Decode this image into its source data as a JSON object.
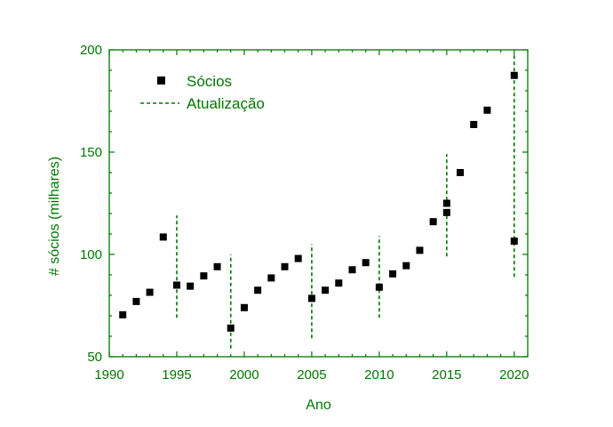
{
  "chart_data": {
    "type": "scatter",
    "title": "",
    "xlabel": "Ano",
    "ylabel": "# sócios (milhares)",
    "xlim": [
      1990,
      2021
    ],
    "ylim": [
      50,
      200
    ],
    "x_ticks": [
      1990,
      1995,
      2000,
      2005,
      2010,
      2015,
      2020
    ],
    "y_ticks": [
      50,
      100,
      150,
      200
    ],
    "x_tick_labels": [
      "1990",
      "1995",
      "2000",
      "2005",
      "2010",
      "2015",
      "2020"
    ],
    "y_tick_labels": [
      "50",
      "100",
      "150",
      "200"
    ],
    "axis_color": "#007700",
    "grid": false,
    "legend_position": "top-left",
    "series": [
      {
        "name": "Sócios",
        "marker": "square",
        "color": "#000000",
        "points": [
          [
            1991,
            70.5
          ],
          [
            1992,
            77
          ],
          [
            1993,
            81.5
          ],
          [
            1994,
            108.5
          ],
          [
            1995,
            85
          ],
          [
            1996,
            84.5
          ],
          [
            1997,
            89.5
          ],
          [
            1998,
            94
          ],
          [
            1999,
            64
          ],
          [
            2000,
            74
          ],
          [
            2001,
            82.5
          ],
          [
            2002,
            88.5
          ],
          [
            2003,
            94
          ],
          [
            2004,
            98
          ],
          [
            2005,
            78.5
          ],
          [
            2006,
            82.5
          ],
          [
            2007,
            86
          ],
          [
            2008,
            92.5
          ],
          [
            2009,
            96
          ],
          [
            2010,
            84
          ],
          [
            2011,
            90.5
          ],
          [
            2012,
            94.5
          ],
          [
            2013,
            102
          ],
          [
            2014,
            116
          ],
          [
            2015,
            125
          ],
          [
            2015,
            120.5
          ],
          [
            2016,
            140
          ],
          [
            2017,
            163.5
          ],
          [
            2018,
            170.5
          ],
          [
            2020,
            187.5
          ],
          [
            2020,
            106.5
          ]
        ]
      },
      {
        "name": "Atualização",
        "style": "dashed-vertical-line",
        "color": "#007700",
        "segments": [
          {
            "x": 1995,
            "y": [
              69,
              119
            ]
          },
          {
            "x": 1999,
            "y": [
              54,
              100
            ]
          },
          {
            "x": 2005,
            "y": [
              59,
              105
            ]
          },
          {
            "x": 2010,
            "y": [
              69,
              109
            ]
          },
          {
            "x": 2015,
            "y": [
              99,
              149
            ]
          },
          {
            "x": 2020,
            "y": [
              89,
              198
            ]
          }
        ]
      }
    ]
  }
}
